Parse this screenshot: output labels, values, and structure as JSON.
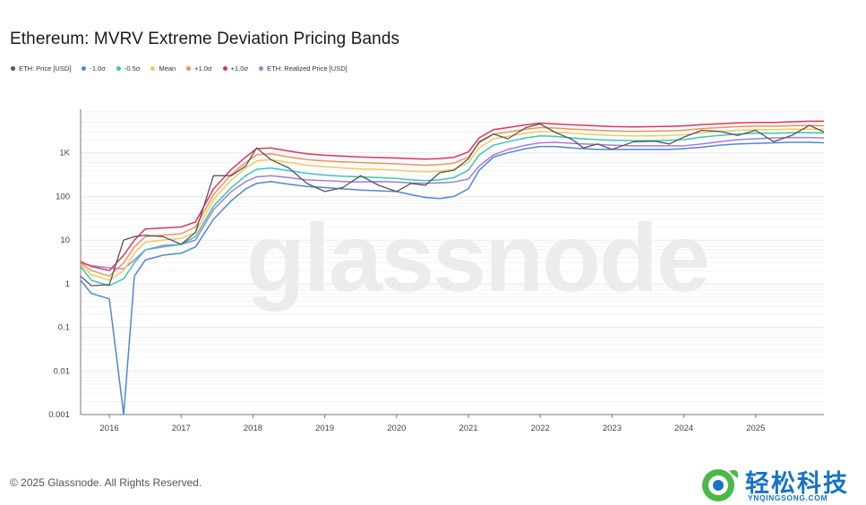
{
  "title": "Ethereum: MVRV Extreme Deviation Pricing Bands",
  "watermark": "glassnode",
  "footer": "© 2025 Glassnode. All Rights Reserved.",
  "brand": {
    "name_cn": "轻松科技",
    "name_en": "YNQINGSONG.COM",
    "color": "#1673c9"
  },
  "chart_data": {
    "type": "line",
    "title": "Ethereum: MVRV Extreme Deviation Pricing Bands",
    "yscale": "log",
    "ylim": [
      0.001,
      10000
    ],
    "xlim": [
      2015.6,
      2025.95
    ],
    "y_ticks": [
      {
        "v": 1000,
        "label": "1K"
      },
      {
        "v": 100,
        "label": "100"
      },
      {
        "v": 10,
        "label": "10"
      },
      {
        "v": 1,
        "label": "1"
      },
      {
        "v": 0.1,
        "label": "0.1"
      },
      {
        "v": 0.01,
        "label": "0.01"
      },
      {
        "v": 0.001,
        "label": "0.001"
      }
    ],
    "x_ticks": [
      "2016",
      "2017",
      "2018",
      "2019",
      "2020",
      "2021",
      "2022",
      "2023",
      "2024",
      "2025"
    ],
    "legend": [
      {
        "name": "ETH: Price [USD]",
        "color": "#555555"
      },
      {
        "name": "-1.0σ",
        "color": "#4e87d9"
      },
      {
        "name": "-0.5σ",
        "color": "#3ec6b8"
      },
      {
        "name": "Mean",
        "color": "#f3c95b"
      },
      {
        "name": "+1.0σ",
        "color": "#f0925a"
      },
      {
        "name": "+1.0σ",
        "color": "#e0345f"
      },
      {
        "name": "ETH: Realized Price [USD]",
        "color": "#a57be0"
      }
    ],
    "x": [
      2015.6,
      2015.75,
      2016.0,
      2016.2,
      2016.35,
      2016.5,
      2016.75,
      2017.0,
      2017.2,
      2017.45,
      2017.7,
      2017.9,
      2018.05,
      2018.25,
      2018.5,
      2018.75,
      2019.0,
      2019.25,
      2019.5,
      2019.75,
      2020.0,
      2020.2,
      2020.4,
      2020.6,
      2020.8,
      2021.0,
      2021.15,
      2021.35,
      2021.55,
      2021.8,
      2022.0,
      2022.2,
      2022.45,
      2022.6,
      2022.8,
      2023.0,
      2023.3,
      2023.6,
      2023.8,
      2024.0,
      2024.25,
      2024.5,
      2024.75,
      2025.0,
      2025.25,
      2025.5,
      2025.75,
      2025.95
    ],
    "series": [
      {
        "name": "ETH: Realized Price [USD]",
        "color": "#a57be0",
        "values": [
          3,
          2.6,
          2.3,
          2.2,
          3.5,
          6,
          7.5,
          8,
          10,
          50,
          130,
          220,
          280,
          300,
          270,
          240,
          230,
          220,
          215,
          220,
          215,
          205,
          200,
          205,
          215,
          250,
          500,
          900,
          1200,
          1500,
          1700,
          1750,
          1650,
          1600,
          1550,
          1500,
          1450,
          1450,
          1450,
          1450,
          1600,
          1800,
          2000,
          2100,
          2200,
          2250,
          2250,
          2200
        ]
      },
      {
        "name": "-1.0σ",
        "color": "#4e87d9",
        "values": [
          1.2,
          0.6,
          0.45,
          0.0008,
          1.5,
          3.5,
          4.5,
          5,
          7,
          30,
          80,
          150,
          200,
          220,
          190,
          170,
          160,
          150,
          140,
          135,
          130,
          110,
          95,
          90,
          100,
          150,
          400,
          800,
          1000,
          1250,
          1400,
          1400,
          1300,
          1250,
          1200,
          1200,
          1200,
          1200,
          1200,
          1250,
          1350,
          1500,
          1600,
          1650,
          1700,
          1750,
          1750,
          1700
        ]
      },
      {
        "name": "-0.5σ",
        "color": "#3ec6b8",
        "values": [
          2.5,
          1.2,
          0.9,
          1.3,
          3,
          6,
          7,
          8,
          12,
          60,
          160,
          300,
          420,
          450,
          390,
          340,
          310,
          290,
          280,
          270,
          260,
          240,
          230,
          240,
          270,
          400,
          900,
          1500,
          1800,
          2200,
          2450,
          2400,
          2200,
          2100,
          2000,
          1950,
          1900,
          1900,
          1950,
          2000,
          2300,
          2500,
          2700,
          2800,
          2800,
          2900,
          2900,
          2850
        ]
      },
      {
        "name": "Mean",
        "color": "#f3c95b",
        "values": [
          2.8,
          1.6,
          1.2,
          2,
          5,
          9,
          10,
          11,
          15,
          85,
          240,
          450,
          650,
          700,
          600,
          520,
          480,
          450,
          430,
          420,
          400,
          380,
          370,
          380,
          420,
          600,
          1300,
          2100,
          2400,
          2800,
          3100,
          3000,
          2800,
          2700,
          2600,
          2500,
          2450,
          2450,
          2500,
          2600,
          2900,
          3100,
          3300,
          3400,
          3400,
          3500,
          3500,
          3450
        ]
      },
      {
        "name": "+1.0σ",
        "color": "#f0925a",
        "values": [
          3,
          2,
          1.5,
          3,
          7,
          12,
          13,
          14,
          20,
          110,
          320,
          600,
          900,
          950,
          800,
          700,
          650,
          620,
          600,
          580,
          560,
          540,
          520,
          540,
          580,
          800,
          1700,
          2700,
          3000,
          3500,
          3800,
          3700,
          3500,
          3400,
          3300,
          3200,
          3100,
          3150,
          3200,
          3300,
          3600,
          3800,
          4000,
          4100,
          4100,
          4200,
          4250,
          4200
        ]
      },
      {
        "name": "+1.0σ",
        "color": "#e0345f",
        "values": [
          3.2,
          2.5,
          2,
          4.5,
          10,
          18,
          19,
          20,
          26,
          150,
          420,
          800,
          1250,
          1300,
          1100,
          950,
          880,
          840,
          800,
          780,
          760,
          740,
          720,
          740,
          790,
          1050,
          2200,
          3400,
          3800,
          4400,
          4800,
          4600,
          4400,
          4300,
          4150,
          4000,
          3950,
          4000,
          4050,
          4150,
          4450,
          4650,
          4850,
          5000,
          5000,
          5150,
          5300,
          5300
        ]
      },
      {
        "name": "ETH: Price [USD]",
        "color": "#555555",
        "values": [
          1.5,
          0.9,
          0.95,
          10,
          12,
          13,
          12,
          8,
          15,
          300,
          300,
          500,
          1300,
          700,
          450,
          200,
          130,
          160,
          300,
          180,
          130,
          200,
          180,
          350,
          400,
          730,
          1800,
          2700,
          2100,
          3800,
          4600,
          3000,
          2000,
          1300,
          1600,
          1200,
          1800,
          1850,
          1600,
          2300,
          3300,
          3100,
          2500,
          3300,
          1800,
          2500,
          4300,
          3000
        ]
      }
    ]
  }
}
